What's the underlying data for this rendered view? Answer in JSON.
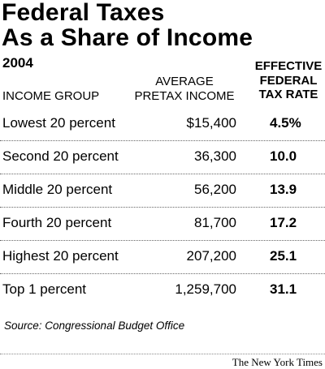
{
  "chart_data": {
    "type": "table",
    "title_line1": "Federal Taxes",
    "title_line2": "As a Share of Income",
    "year": "2004",
    "columns": {
      "group": "INCOME GROUP",
      "income_line1": "AVERAGE",
      "income_line2": "PRETAX INCOME",
      "rate_line1": "EFFECTIVE",
      "rate_line2": "FEDERAL",
      "rate_line3": "TAX RATE"
    },
    "rows": [
      {
        "group": "Lowest 20 percent",
        "income": "$15,400",
        "rate": "4.5%"
      },
      {
        "group": "Second 20 percent",
        "income": "36,300",
        "rate": "10.0"
      },
      {
        "group": "Middle 20 percent",
        "income": "56,200",
        "rate": "13.9"
      },
      {
        "group": "Fourth 20 percent",
        "income": "81,700",
        "rate": "17.2"
      },
      {
        "group": "Highest 20 percent",
        "income": "207,200",
        "rate": "25.1"
      },
      {
        "group": "Top 1 percent",
        "income": "1,259,700",
        "rate": "31.1"
      }
    ],
    "source": "Source: Congressional Budget Office",
    "credit": "The New York Times"
  }
}
